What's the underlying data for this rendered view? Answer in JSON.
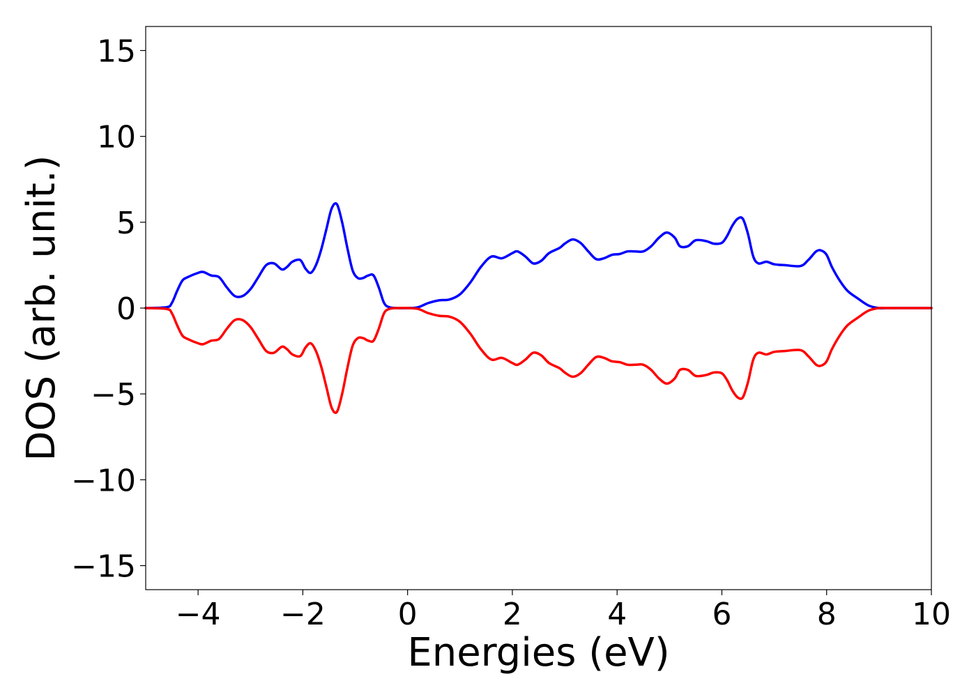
{
  "chart_data": {
    "type": "line",
    "title": "",
    "xlabel": "Energies (eV)",
    "ylabel": "DOS (arb. unit.)",
    "xlim": [
      -5,
      10
    ],
    "ylim": [
      -16.4,
      16.4
    ],
    "xticks": [
      -4,
      -2,
      0,
      2,
      4,
      6,
      8,
      10
    ],
    "yticks": [
      -15,
      -10,
      -5,
      0,
      5,
      10,
      15
    ],
    "xtick_labels": [
      "−4",
      "−2",
      "0",
      "2",
      "4",
      "6",
      "8",
      "10"
    ],
    "ytick_labels": [
      "−15",
      "−10",
      "−5",
      "0",
      "5",
      "10",
      "15"
    ],
    "grid": false,
    "legend": null,
    "series": [
      {
        "color": "#0000ff",
        "x": [
          -5.0,
          -4.6,
          -4.5,
          -4.4,
          -4.3,
          -4.2,
          -4.0,
          -3.9,
          -3.75,
          -3.6,
          -3.45,
          -3.3,
          -3.15,
          -3.0,
          -2.85,
          -2.7,
          -2.55,
          -2.4,
          -2.3,
          -2.2,
          -2.05,
          -1.95,
          -1.85,
          -1.75,
          -1.65,
          -1.55,
          -1.45,
          -1.35,
          -1.25,
          -1.15,
          -1.05,
          -0.95,
          -0.85,
          -0.75,
          -0.65,
          -0.55,
          -0.45,
          -0.35,
          -0.2,
          0.0,
          0.2,
          0.4,
          0.6,
          0.8,
          1.0,
          1.2,
          1.4,
          1.6,
          1.8,
          2.0,
          2.1,
          2.25,
          2.4,
          2.55,
          2.7,
          2.9,
          3.0,
          3.15,
          3.3,
          3.45,
          3.6,
          3.75,
          3.9,
          4.05,
          4.2,
          4.35,
          4.5,
          4.65,
          4.8,
          4.95,
          5.1,
          5.2,
          5.35,
          5.5,
          5.7,
          5.85,
          6.0,
          6.1,
          6.2,
          6.3,
          6.4,
          6.5,
          6.6,
          6.7,
          6.85,
          7.0,
          7.2,
          7.5,
          7.65,
          7.8,
          7.9,
          8.0,
          8.1,
          8.25,
          8.4,
          8.6,
          8.8,
          9.0,
          9.2,
          10.0
        ],
        "y": [
          0.0,
          0.05,
          0.3,
          1.0,
          1.6,
          1.8,
          2.05,
          2.1,
          1.9,
          1.8,
          1.2,
          0.7,
          0.7,
          1.1,
          1.8,
          2.5,
          2.6,
          2.25,
          2.4,
          2.7,
          2.8,
          2.3,
          2.05,
          2.5,
          3.4,
          4.6,
          5.8,
          6.05,
          5.0,
          3.5,
          2.2,
          1.75,
          1.75,
          1.9,
          1.9,
          1.2,
          0.3,
          0.05,
          0.0,
          0.0,
          0.05,
          0.3,
          0.45,
          0.5,
          0.8,
          1.5,
          2.4,
          3.0,
          2.9,
          3.2,
          3.3,
          3.0,
          2.6,
          2.75,
          3.2,
          3.5,
          3.75,
          4.0,
          3.8,
          3.3,
          2.85,
          2.9,
          3.1,
          3.15,
          3.3,
          3.3,
          3.3,
          3.6,
          4.1,
          4.4,
          4.1,
          3.6,
          3.6,
          3.95,
          3.9,
          3.75,
          3.8,
          4.2,
          4.8,
          5.2,
          5.2,
          4.3,
          3.0,
          2.6,
          2.7,
          2.55,
          2.5,
          2.45,
          2.8,
          3.3,
          3.35,
          3.1,
          2.4,
          1.6,
          1.0,
          0.55,
          0.15,
          0.0,
          0.0,
          0.0
        ]
      },
      {
        "color": "#ff0000",
        "x": [
          -5.0,
          -4.6,
          -4.5,
          -4.4,
          -4.3,
          -4.2,
          -4.0,
          -3.9,
          -3.75,
          -3.6,
          -3.45,
          -3.3,
          -3.15,
          -3.0,
          -2.85,
          -2.7,
          -2.55,
          -2.4,
          -2.3,
          -2.2,
          -2.05,
          -1.95,
          -1.85,
          -1.75,
          -1.65,
          -1.55,
          -1.45,
          -1.35,
          -1.25,
          -1.15,
          -1.05,
          -0.95,
          -0.85,
          -0.75,
          -0.65,
          -0.55,
          -0.45,
          -0.35,
          -0.2,
          0.0,
          0.2,
          0.4,
          0.6,
          0.8,
          1.0,
          1.2,
          1.4,
          1.6,
          1.8,
          2.0,
          2.1,
          2.25,
          2.4,
          2.55,
          2.7,
          2.9,
          3.0,
          3.15,
          3.3,
          3.45,
          3.6,
          3.75,
          3.9,
          4.05,
          4.2,
          4.35,
          4.5,
          4.65,
          4.8,
          4.95,
          5.1,
          5.2,
          5.35,
          5.5,
          5.7,
          5.85,
          6.0,
          6.1,
          6.2,
          6.3,
          6.4,
          6.5,
          6.6,
          6.7,
          6.85,
          7.0,
          7.2,
          7.5,
          7.65,
          7.8,
          7.9,
          8.0,
          8.1,
          8.25,
          8.4,
          8.6,
          8.8,
          9.0,
          9.2,
          10.0
        ],
        "y": [
          0.0,
          -0.05,
          -0.3,
          -1.0,
          -1.6,
          -1.8,
          -2.05,
          -2.1,
          -1.9,
          -1.8,
          -1.2,
          -0.7,
          -0.7,
          -1.1,
          -1.8,
          -2.5,
          -2.6,
          -2.25,
          -2.4,
          -2.7,
          -2.8,
          -2.3,
          -2.05,
          -2.5,
          -3.4,
          -4.6,
          -5.8,
          -6.05,
          -5.0,
          -3.5,
          -2.2,
          -1.75,
          -1.75,
          -1.9,
          -1.9,
          -1.2,
          -0.3,
          -0.05,
          0.0,
          0.0,
          -0.05,
          -0.3,
          -0.45,
          -0.5,
          -0.8,
          -1.5,
          -2.4,
          -3.0,
          -2.9,
          -3.2,
          -3.3,
          -3.0,
          -2.6,
          -2.75,
          -3.2,
          -3.5,
          -3.75,
          -4.0,
          -3.8,
          -3.3,
          -2.85,
          -2.9,
          -3.1,
          -3.15,
          -3.3,
          -3.3,
          -3.3,
          -3.6,
          -4.1,
          -4.4,
          -4.1,
          -3.6,
          -3.6,
          -3.95,
          -3.9,
          -3.75,
          -3.8,
          -4.2,
          -4.8,
          -5.2,
          -5.2,
          -4.3,
          -3.0,
          -2.6,
          -2.7,
          -2.55,
          -2.5,
          -2.45,
          -2.8,
          -3.3,
          -3.35,
          -3.1,
          -2.4,
          -1.6,
          -1.0,
          -0.55,
          -0.15,
          0.0,
          0.0,
          0.0
        ]
      }
    ]
  }
}
